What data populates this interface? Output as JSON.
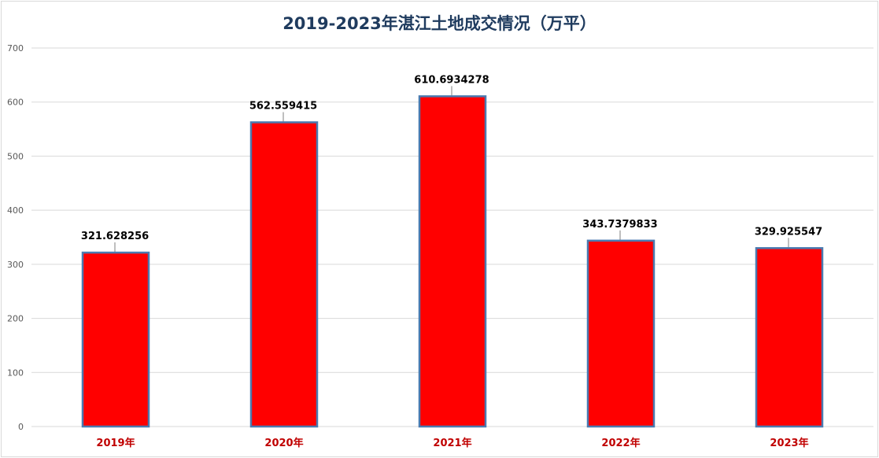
{
  "chart_data": {
    "type": "bar",
    "title": "2019-2023年湛江土地成交情况（万平）",
    "xlabel": "",
    "ylabel": "",
    "categories": [
      "2019年",
      "2020年",
      "2021年",
      "2022年",
      "2023年"
    ],
    "values": [
      321.628256,
      562.559415,
      610.6934278,
      343.7379833,
      329.925547
    ],
    "data_labels": [
      "321.628256",
      "562.559415",
      "610.6934278",
      "343.7379833",
      "329.925547"
    ],
    "ylim": [
      0,
      700
    ],
    "yticks": [
      0,
      100,
      200,
      300,
      400,
      500,
      600,
      700
    ],
    "grid": true,
    "legend": "none",
    "colors": {
      "bar_fill": "#ff0000",
      "bar_border": "#4a7ab0",
      "title": "#1f3b5e",
      "category_label": "#c00000"
    }
  }
}
